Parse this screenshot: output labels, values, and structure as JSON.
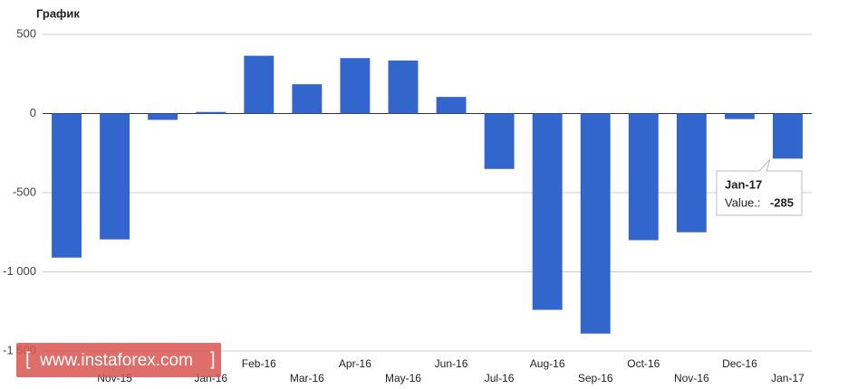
{
  "chart_data": {
    "type": "bar",
    "title": "График",
    "categories": [
      null,
      "Nov-15",
      null,
      "Jan-16",
      "Feb-16",
      "Mar-16",
      "Apr-16",
      "May-16",
      "Jun-16",
      "Jul-16",
      "Aug-16",
      "Sep-16",
      "Oct-16",
      "Nov-16",
      "Dec-16",
      "Jan-17"
    ],
    "values": [
      -910,
      -795,
      -40,
      10,
      365,
      185,
      350,
      335,
      105,
      -350,
      -1240,
      -1390,
      -800,
      -750,
      -35,
      -285
    ],
    "color": "#3366cc",
    "ylim": [
      -1500,
      500
    ],
    "yticks": [
      500,
      0,
      -500,
      {
        "value": -1000,
        "label": "-1 000"
      },
      {
        "value": -1500,
        "label": "-1 500"
      }
    ],
    "grid": true,
    "tooltip_label": "Value.:"
  },
  "watermark": "www.instaforex.com"
}
